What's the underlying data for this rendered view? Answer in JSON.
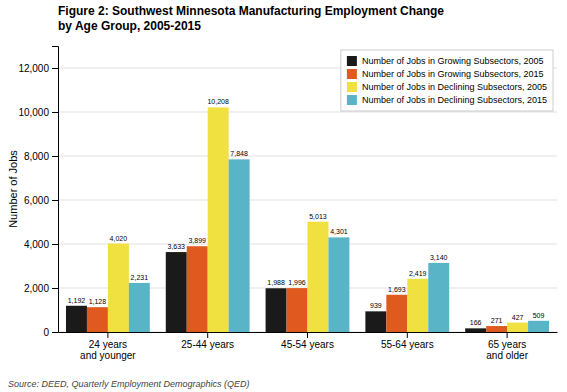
{
  "chart_data": {
    "type": "bar",
    "title": "Figure 2: Southwest Minnesota Manufacturing Employment Change\nby Age Group, 2005-2015",
    "ylabel": "Number of Jobs",
    "source": "Source: DEED, Quarterly Employment Demographics (QED)",
    "categories": [
      "24 years\nand younger",
      "25-44 years",
      "45-54 years",
      "55-64 years",
      "65 years\nand older"
    ],
    "series": [
      {
        "name": "Number of Jobs in Growing Subsectors, 2005",
        "color": "#1a1a1a",
        "values": [
          1192,
          3633,
          1988,
          939,
          166
        ],
        "value_labels": [
          "1,192",
          "3,633",
          "1,988",
          "939",
          "166"
        ]
      },
      {
        "name": "Number of Jobs in Growing Subsectors, 2015",
        "color": "#e05a20",
        "values": [
          1128,
          3899,
          1996,
          1693,
          271
        ],
        "value_labels": [
          "1,128",
          "3,899",
          "1,996",
          "1,693",
          "271"
        ]
      },
      {
        "name": "Number of Jobs in Declining Subsectors, 2005",
        "color": "#f0e040",
        "values": [
          4020,
          10208,
          5013,
          2419,
          427
        ],
        "value_labels": [
          "4,020",
          "10,208",
          "5,013",
          "2,419",
          "427"
        ]
      },
      {
        "name": "Number of Jobs in Declining Subsectors, 2015",
        "color": "#5ab4c8",
        "values": [
          2231,
          7848,
          4301,
          3140,
          509
        ],
        "value_labels": [
          "2,231",
          "7,848",
          "4,301",
          "3,140",
          "509"
        ]
      }
    ],
    "ylim": [
      0,
      13000
    ],
    "yticks": [
      0,
      {
        "value": 2000,
        "label": "2,000"
      },
      {
        "value": 4000,
        "label": "4,000"
      },
      {
        "value": 6000,
        "label": "6,000"
      },
      {
        "value": 8000,
        "label": "8,000"
      },
      {
        "value": 10000,
        "label": "10,000"
      },
      {
        "value": 12000,
        "label": "12,000"
      }
    ],
    "grid": true,
    "legend": "upper right",
    "data_labels": true
  }
}
